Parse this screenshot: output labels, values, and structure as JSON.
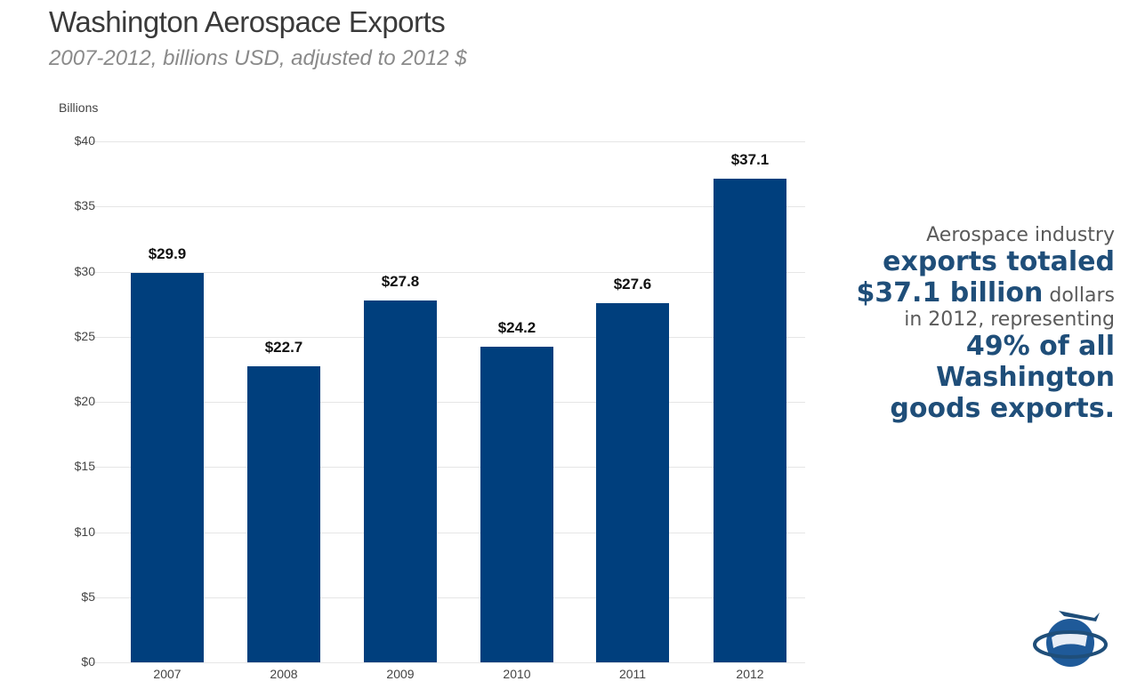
{
  "header": {
    "title": "Washington Aerospace Exports",
    "subtitle": "2007-2012, billions USD, adjusted to 2012 $"
  },
  "axis": {
    "ylabel": "Billions",
    "ticks": [
      "$0",
      "$5",
      "$10",
      "$15",
      "$20",
      "$25",
      "$30",
      "$35",
      "$40"
    ]
  },
  "bars": [
    {
      "year": "2007",
      "label": "$29.9"
    },
    {
      "year": "2008",
      "label": "$22.7"
    },
    {
      "year": "2009",
      "label": "$27.8"
    },
    {
      "year": "2010",
      "label": "$24.2"
    },
    {
      "year": "2011",
      "label": "$27.6"
    },
    {
      "year": "2012",
      "label": "$37.1"
    }
  ],
  "callout": {
    "line1": "Aerospace industry",
    "line2": "exports totaled",
    "line3_big": "$37.1 billion",
    "line3_small": " dollars",
    "line4": "in 2012, representing",
    "line5": "49% of all",
    "line6": "Washington",
    "line7": "goods exports."
  },
  "colors": {
    "bar": "#003f7d",
    "callout_emphasis": "#1f4e79"
  },
  "chart_data": {
    "type": "bar",
    "title": "Washington Aerospace Exports",
    "subtitle": "2007-2012, billions USD, adjusted to 2012 $",
    "categories": [
      "2007",
      "2008",
      "2009",
      "2010",
      "2011",
      "2012"
    ],
    "values": [
      29.9,
      22.7,
      27.8,
      24.2,
      27.6,
      37.1
    ],
    "xlabel": "",
    "ylabel": "Billions",
    "ylim": [
      0,
      40
    ],
    "yticks": [
      0,
      5,
      10,
      15,
      20,
      25,
      30,
      35,
      40
    ],
    "ytick_format": "$",
    "grid": true,
    "data_labels": [
      "$29.9",
      "$22.7",
      "$27.8",
      "$24.2",
      "$27.6",
      "$37.1"
    ],
    "annotation": "Aerospace industry exports totaled $37.1 billion dollars in 2012, representing 49% of all Washington goods exports."
  }
}
